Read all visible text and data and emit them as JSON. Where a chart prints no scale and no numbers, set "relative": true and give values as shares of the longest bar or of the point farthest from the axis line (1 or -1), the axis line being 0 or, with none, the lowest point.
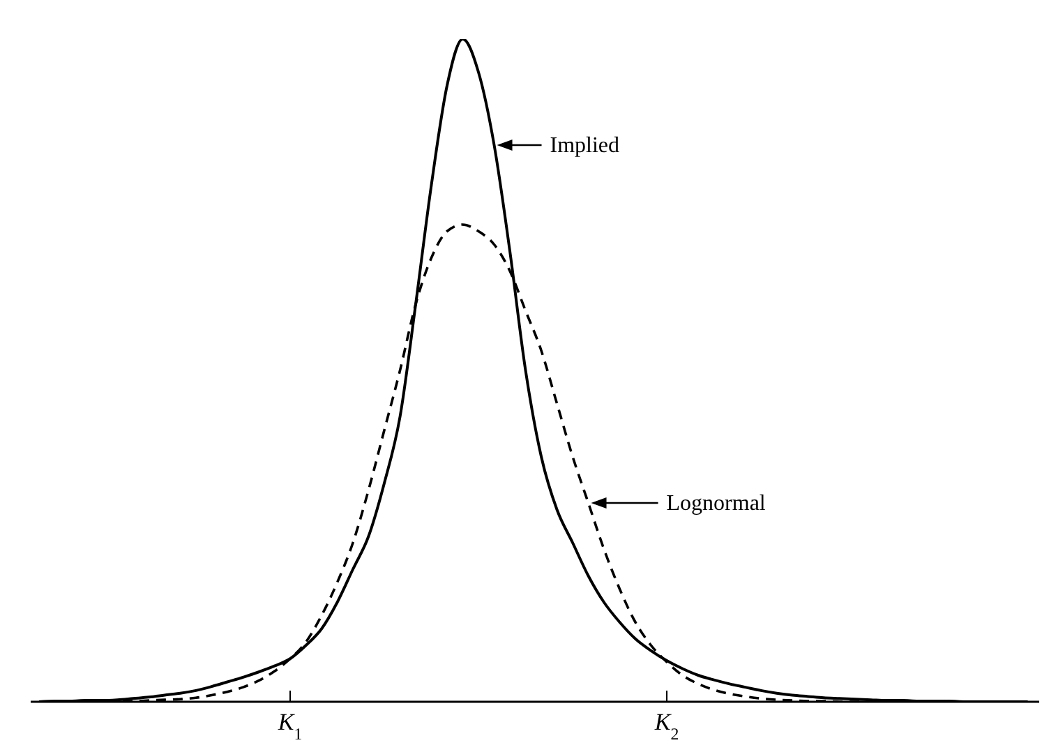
{
  "chart_data": {
    "type": "line",
    "relative": true,
    "marker": "none",
    "legend": "right",
    "categories": [
      null,
      null,
      null,
      null,
      null,
      null,
      null,
      null,
      null,
      null,
      null,
      null,
      null,
      null,
      null,
      null,
      "K$_{1}$",
      null,
      null,
      null,
      null,
      null,
      null,
      null,
      null,
      null,
      null,
      null,
      null,
      null,
      null,
      null,
      null,
      null,
      null,
      null,
      null,
      null,
      null,
      null,
      "K$_{2}$",
      null,
      null,
      null,
      null,
      null,
      null,
      null,
      null,
      null,
      null,
      null,
      null,
      null,
      null,
      null,
      null,
      null,
      null,
      null,
      null,
      null,
      null,
      null
    ],
    "series": [
      {
        "name": "Implied",
        "color": "#000000",
        "line_style": "solid",
        "values": [
          0,
          0.001,
          0.001,
          0.002,
          0.002,
          0.003,
          0.005,
          0.007,
          0.01,
          0.013,
          0.017,
          0.023,
          0.03,
          0.037,
          0.045,
          0.054,
          0.065,
          0.085,
          0.11,
          0.15,
          0.2,
          0.25,
          0.33,
          0.43,
          0.6,
          0.78,
          0.93,
          1,
          0.95,
          0.84,
          0.68,
          0.5,
          0.37,
          0.29,
          0.24,
          0.19,
          0.15,
          0.12,
          0.095,
          0.077,
          0.062,
          0.05,
          0.04,
          0.033,
          0.027,
          0.022,
          0.017,
          0.013,
          0.01,
          0.008,
          0.006,
          0.005,
          0.004,
          0.003,
          0.002,
          0.002,
          0.001,
          0.001,
          0.001,
          0,
          0,
          0,
          0,
          0
        ]
      },
      {
        "name": "Lognormal",
        "color": "#000000",
        "line_style": "dashed",
        "values": [
          0,
          0,
          0,
          0,
          0,
          0.001,
          0.001,
          0.002,
          0.003,
          0.004,
          0.006,
          0.01,
          0.015,
          0.022,
          0.032,
          0.046,
          0.065,
          0.09,
          0.13,
          0.18,
          0.24,
          0.32,
          0.41,
          0.5,
          0.6,
          0.67,
          0.71,
          0.72,
          0.71,
          0.69,
          0.65,
          0.59,
          0.53,
          0.45,
          0.37,
          0.3,
          0.23,
          0.17,
          0.12,
          0.085,
          0.06,
          0.04,
          0.027,
          0.018,
          0.012,
          0.008,
          0.005,
          0.003,
          0.002,
          0.001,
          0.001,
          0,
          0,
          0,
          0,
          0,
          0,
          0,
          0,
          0,
          0,
          0,
          0,
          0
        ]
      }
    ]
  }
}
